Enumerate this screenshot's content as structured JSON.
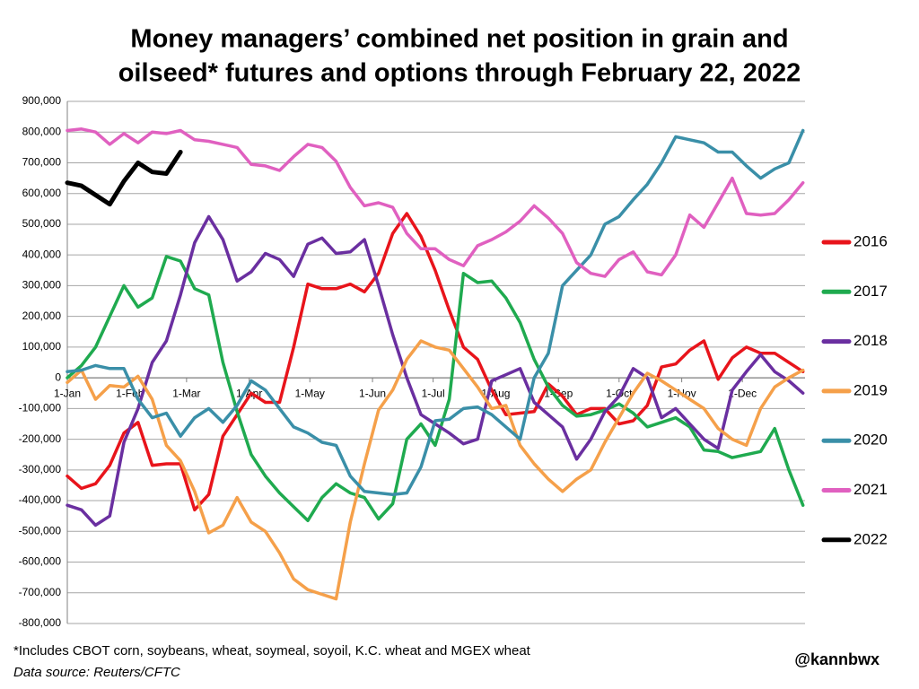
{
  "chart_data": {
    "type": "line",
    "title": [
      "Money managers’ combined net position in grain and",
      "oilseed* futures and options through February 22, 2022"
    ],
    "footnote": "*Includes CBOT corn, soybeans, wheat, soymeal, soyoil, K.C. wheat and MGEX wheat",
    "source": "Data source: Reuters/CFTC",
    "credit": "@kannbwx",
    "x": [
      0,
      7,
      14,
      21,
      28,
      35,
      42,
      49,
      56,
      63,
      70,
      77,
      84,
      91,
      98,
      105,
      112,
      119,
      126,
      133,
      140,
      147,
      154,
      161,
      168,
      175,
      182,
      189,
      196,
      203,
      210,
      217,
      224,
      231,
      238,
      245,
      252,
      259,
      266,
      273,
      280,
      287,
      294,
      301,
      308,
      315,
      322,
      329,
      336,
      343,
      350,
      357,
      364
    ],
    "xlim": [
      0,
      365
    ],
    "xticks": [
      {
        "value": 0,
        "label": "1-Jan"
      },
      {
        "value": 31,
        "label": "1-Feb"
      },
      {
        "value": 59,
        "label": "1-Mar"
      },
      {
        "value": 90,
        "label": "1-Apr"
      },
      {
        "value": 120,
        "label": "1-May"
      },
      {
        "value": 151,
        "label": "1-Jun"
      },
      {
        "value": 181,
        "label": "1-Jul"
      },
      {
        "value": 212,
        "label": "1-Aug"
      },
      {
        "value": 243,
        "label": "1-Sep"
      },
      {
        "value": 273,
        "label": "1-Oct"
      },
      {
        "value": 304,
        "label": "1-Nov"
      },
      {
        "value": 334,
        "label": "1-Dec"
      }
    ],
    "ylim": [
      -800000,
      900000
    ],
    "yticks": [
      {
        "value": -800000,
        "label": "-800,000"
      },
      {
        "value": -700000,
        "label": "-700,000"
      },
      {
        "value": -600000,
        "label": "-600,000"
      },
      {
        "value": -500000,
        "label": "-500,000"
      },
      {
        "value": -400000,
        "label": "-400,000"
      },
      {
        "value": -300000,
        "label": "-300,000"
      },
      {
        "value": -200000,
        "label": "-200,000"
      },
      {
        "value": -100000,
        "label": "-100,000"
      },
      0,
      {
        "value": 100000,
        "label": "100,000"
      },
      {
        "value": 200000,
        "label": "200,000"
      },
      {
        "value": 300000,
        "label": "300,000"
      },
      {
        "value": 400000,
        "label": "400,000"
      },
      {
        "value": 500000,
        "label": "500,000"
      },
      {
        "value": 600000,
        "label": "600,000"
      },
      {
        "value": 700000,
        "label": "700,000"
      },
      {
        "value": 800000,
        "label": "800,000"
      },
      {
        "value": 900000,
        "label": "900,000"
      }
    ],
    "grid": true,
    "legend": "right",
    "series": [
      {
        "name": "2016",
        "color": "#e8141b",
        "values": [
          -320000,
          -360000,
          -345000,
          -285000,
          -180000,
          -145000,
          -285000,
          -280000,
          -280000,
          -430000,
          -380000,
          -190000,
          -120000,
          -50000,
          -80000,
          -80000,
          100000,
          305000,
          290000,
          290000,
          305000,
          280000,
          340000,
          470000,
          535000,
          460000,
          350000,
          220000,
          100000,
          60000,
          -40000,
          -120000,
          -115000,
          -110000,
          -20000,
          -60000,
          -120000,
          -100000,
          -100000,
          -150000,
          -140000,
          -90000,
          35000,
          45000,
          90000,
          120000,
          -5000,
          65000,
          100000,
          80000,
          80000,
          50000,
          20000
        ]
      },
      {
        "name": "2017",
        "color": "#1faa4f",
        "values": [
          0,
          40000,
          100000,
          200000,
          300000,
          230000,
          260000,
          395000,
          380000,
          290000,
          270000,
          50000,
          -110000,
          -250000,
          -320000,
          -375000,
          -420000,
          -465000,
          -390000,
          -345000,
          -375000,
          -390000,
          -460000,
          -410000,
          -200000,
          -150000,
          -220000,
          -70000,
          340000,
          310000,
          315000,
          260000,
          180000,
          60000,
          -30000,
          -90000,
          -125000,
          -120000,
          -105000,
          -85000,
          -115000,
          -160000,
          -145000,
          -130000,
          -160000,
          -235000,
          -240000,
          -260000,
          -250000,
          -240000,
          -165000,
          -300000,
          -415000
        ]
      },
      {
        "name": "2018",
        "color": "#6a2fa0",
        "values": [
          -415000,
          -430000,
          -480000,
          -450000,
          -210000,
          -100000,
          50000,
          120000,
          270000,
          440000,
          525000,
          450000,
          315000,
          345000,
          405000,
          385000,
          330000,
          435000,
          455000,
          405000,
          410000,
          450000,
          300000,
          140000,
          0,
          -120000,
          -150000,
          -180000,
          -215000,
          -200000,
          -10000,
          10000,
          30000,
          -80000,
          -120000,
          -160000,
          -265000,
          -200000,
          -110000,
          -60000,
          30000,
          0,
          -130000,
          -100000,
          -150000,
          -200000,
          -230000,
          -40000,
          20000,
          75000,
          20000,
          -10000,
          -50000
        ]
      },
      {
        "name": "2019",
        "color": "#f5a04a",
        "values": [
          -15000,
          25000,
          -70000,
          -25000,
          -30000,
          5000,
          -70000,
          -220000,
          -270000,
          -370000,
          -505000,
          -480000,
          -390000,
          -470000,
          -500000,
          -570000,
          -655000,
          -690000,
          -705000,
          -720000,
          -470000,
          -280000,
          -105000,
          -40000,
          60000,
          120000,
          100000,
          90000,
          30000,
          -30000,
          -100000,
          -90000,
          -220000,
          -280000,
          -330000,
          -370000,
          -330000,
          -300000,
          -210000,
          -130000,
          -50000,
          15000,
          -10000,
          -40000,
          -70000,
          -100000,
          -165000,
          -200000,
          -220000,
          -100000,
          -30000,
          0,
          25000
        ]
      },
      {
        "name": "2020",
        "color": "#3a8fa8",
        "values": [
          20000,
          25000,
          40000,
          30000,
          30000,
          -70000,
          -130000,
          -115000,
          -190000,
          -130000,
          -100000,
          -145000,
          -90000,
          -10000,
          -40000,
          -100000,
          -160000,
          -180000,
          -210000,
          -220000,
          -320000,
          -370000,
          -375000,
          -380000,
          -375000,
          -290000,
          -140000,
          -135000,
          -100000,
          -95000,
          -120000,
          -160000,
          -200000,
          0,
          80000,
          300000,
          350000,
          400000,
          500000,
          525000,
          580000,
          630000,
          700000,
          785000,
          775000,
          765000,
          735000,
          735000,
          690000,
          650000,
          680000,
          700000,
          805000
        ]
      },
      {
        "name": "2021",
        "color": "#e060c0",
        "values": [
          805000,
          810000,
          800000,
          760000,
          795000,
          765000,
          800000,
          795000,
          805000,
          775000,
          770000,
          760000,
          750000,
          695000,
          690000,
          675000,
          720000,
          760000,
          750000,
          705000,
          620000,
          560000,
          570000,
          555000,
          470000,
          420000,
          420000,
          385000,
          365000,
          430000,
          450000,
          475000,
          510000,
          560000,
          520000,
          470000,
          375000,
          340000,
          330000,
          385000,
          410000,
          345000,
          335000,
          400000,
          530000,
          490000,
          570000,
          650000,
          535000,
          530000,
          535000,
          580000,
          635000
        ]
      },
      {
        "name": "2022",
        "color": "#000000",
        "values": [
          635000,
          625000,
          595000,
          565000,
          640000,
          700000,
          670000,
          665000,
          735000,
          null,
          null,
          null,
          null,
          null,
          null,
          null,
          null,
          null,
          null,
          null,
          null,
          null,
          null,
          null,
          null,
          null,
          null,
          null,
          null,
          null,
          null,
          null,
          null,
          null,
          null,
          null,
          null,
          null,
          null,
          null,
          null,
          null,
          null,
          null,
          null,
          null,
          null,
          null,
          null,
          null,
          null,
          null,
          null
        ]
      }
    ]
  }
}
